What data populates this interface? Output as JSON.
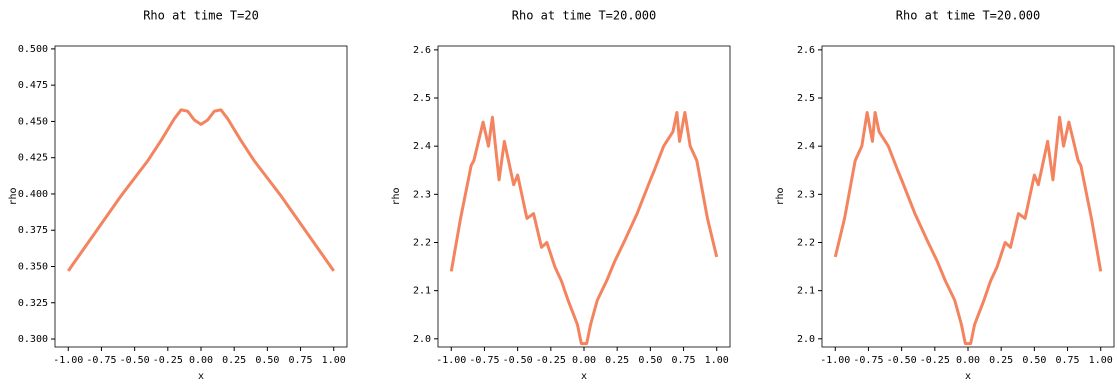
{
  "chart_data": [
    {
      "type": "line",
      "title": "Rho at time T=20",
      "xlabel": "x",
      "ylabel": "rho",
      "x": [
        -1,
        -0.9,
        -0.8,
        -0.7,
        -0.6,
        -0.5,
        -0.4,
        -0.3,
        -0.2,
        -0.15,
        -0.1,
        -0.05,
        0,
        0.05,
        0.1,
        0.15,
        0.2,
        0.3,
        0.4,
        0.5,
        0.6,
        0.7,
        0.8,
        0.9,
        1
      ],
      "series": [
        {
          "color": "#f4845f",
          "values": [
            0.347,
            0.36,
            0.373,
            0.386,
            0.399,
            0.411,
            0.423,
            0.437,
            0.452,
            0.458,
            0.457,
            0.451,
            0.448,
            0.451,
            0.457,
            0.458,
            0.452,
            0.437,
            0.423,
            0.411,
            0.399,
            0.386,
            0.373,
            0.36,
            0.347
          ]
        }
      ],
      "xlim": [
        -1.1,
        1.1
      ],
      "ylim": [
        0.2945,
        0.502
      ],
      "xticks": [
        {
          "value": -1,
          "label": "-1.00"
        },
        {
          "value": -0.75,
          "label": "-0.75"
        },
        {
          "value": -0.5,
          "label": "-0.50"
        },
        {
          "value": -0.25,
          "label": "-0.25"
        },
        {
          "value": 0,
          "label": "0.00"
        },
        {
          "value": 0.25,
          "label": "0.25"
        },
        {
          "value": 0.5,
          "label": "0.50"
        },
        {
          "value": 0.75,
          "label": "0.75"
        },
        {
          "value": 1,
          "label": "1.00"
        }
      ],
      "yticks": [
        {
          "value": 0.3,
          "label": "0.300"
        },
        0.325,
        {
          "value": 0.35,
          "label": "0.350"
        },
        0.375,
        {
          "value": 0.4,
          "label": "0.400"
        },
        0.425,
        {
          "value": 0.45,
          "label": "0.450"
        },
        0.475,
        {
          "value": 0.5,
          "label": "0.500"
        }
      ]
    },
    {
      "type": "line",
      "title": "Rho at time T=20.000",
      "xlabel": "x",
      "ylabel": "rho",
      "x": [
        -1,
        -0.93,
        -0.85,
        -0.83,
        -0.76,
        -0.72,
        -0.69,
        -0.64,
        -0.6,
        -0.53,
        -0.5,
        -0.43,
        -0.38,
        -0.32,
        -0.28,
        -0.22,
        -0.17,
        -0.12,
        -0.05,
        -0.02,
        0.02,
        0.05,
        0.1,
        0.17,
        0.23,
        0.3,
        0.4,
        0.5,
        0.53,
        0.6,
        0.67,
        0.7,
        0.72,
        0.76,
        0.8,
        0.85,
        0.93,
        1
      ],
      "series": [
        {
          "color": "#f4845f",
          "values": [
            2.14,
            2.25,
            2.36,
            2.37,
            2.45,
            2.4,
            2.46,
            2.33,
            2.41,
            2.32,
            2.34,
            2.25,
            2.26,
            2.19,
            2.2,
            2.15,
            2.12,
            2.08,
            2.03,
            1.99,
            1.99,
            2.03,
            2.08,
            2.12,
            2.16,
            2.2,
            2.26,
            2.33,
            2.35,
            2.4,
            2.43,
            2.47,
            2.41,
            2.47,
            2.4,
            2.37,
            2.25,
            2.17
          ]
        }
      ],
      "xlim": [
        -1.1,
        1.1
      ],
      "ylim": [
        1.983,
        2.608
      ],
      "xticks": [
        {
          "value": -1,
          "label": "-1.00"
        },
        {
          "value": -0.75,
          "label": "-0.75"
        },
        {
          "value": -0.5,
          "label": "-0.50"
        },
        {
          "value": -0.25,
          "label": "-0.25"
        },
        {
          "value": 0,
          "label": "0.00"
        },
        {
          "value": 0.25,
          "label": "0.25"
        },
        {
          "value": 0.5,
          "label": "0.50"
        },
        {
          "value": 0.75,
          "label": "0.75"
        },
        {
          "value": 1,
          "label": "1.00"
        }
      ],
      "yticks": [
        {
          "value": 2,
          "label": "2.0"
        },
        2.1,
        2.2,
        2.3,
        2.4,
        2.5,
        2.6
      ]
    },
    {
      "type": "line",
      "title": "Rho at time T=20.000",
      "xlabel": "x",
      "ylabel": "rho",
      "x": [
        -1,
        -0.93,
        -0.85,
        -0.8,
        -0.76,
        -0.72,
        -0.7,
        -0.67,
        -0.6,
        -0.53,
        -0.5,
        -0.4,
        -0.3,
        -0.23,
        -0.17,
        -0.1,
        -0.05,
        -0.02,
        0.02,
        0.05,
        0.12,
        0.17,
        0.22,
        0.28,
        0.32,
        0.38,
        0.43,
        0.5,
        0.53,
        0.6,
        0.64,
        0.69,
        0.72,
        0.76,
        0.83,
        0.85,
        0.93,
        1
      ],
      "series": [
        {
          "color": "#f4845f",
          "values": [
            2.17,
            2.25,
            2.37,
            2.4,
            2.47,
            2.41,
            2.47,
            2.43,
            2.4,
            2.35,
            2.33,
            2.26,
            2.2,
            2.16,
            2.12,
            2.08,
            2.03,
            1.99,
            1.99,
            2.03,
            2.08,
            2.12,
            2.15,
            2.2,
            2.19,
            2.26,
            2.25,
            2.34,
            2.32,
            2.41,
            2.33,
            2.46,
            2.4,
            2.45,
            2.37,
            2.36,
            2.25,
            2.14
          ]
        }
      ],
      "xlim": [
        -1.1,
        1.1
      ],
      "ylim": [
        1.983,
        2.608
      ],
      "xticks": [
        {
          "value": -1,
          "label": "-1.00"
        },
        {
          "value": -0.75,
          "label": "-0.75"
        },
        {
          "value": -0.5,
          "label": "-0.50"
        },
        {
          "value": -0.25,
          "label": "-0.25"
        },
        {
          "value": 0,
          "label": "0.00"
        },
        {
          "value": 0.25,
          "label": "0.25"
        },
        {
          "value": 0.5,
          "label": "0.50"
        },
        {
          "value": 0.75,
          "label": "0.75"
        },
        {
          "value": 1,
          "label": "1.00"
        }
      ],
      "yticks": [
        {
          "value": 2,
          "label": "2.0"
        },
        2.1,
        2.2,
        2.3,
        2.4,
        2.5,
        2.6
      ]
    }
  ]
}
